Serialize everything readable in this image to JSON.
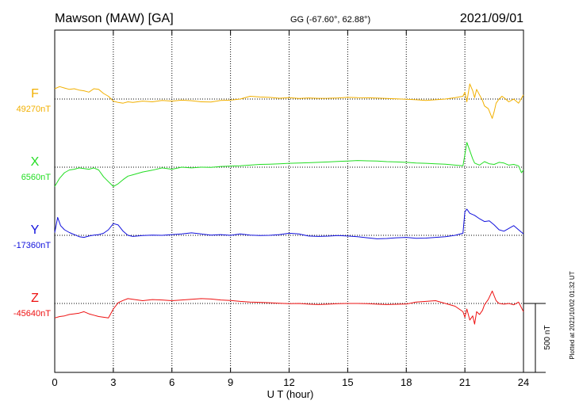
{
  "header": {
    "station": "Mawson (MAW)  [GA]",
    "coords": "GG (-67.60°,  62.88°)",
    "date": "2021/09/01"
  },
  "plotted_note": "Plotted at 2021/10/02 01:32 UT",
  "scale_bar_label": "500 nT",
  "chart_data": {
    "type": "line",
    "title": "Mawson (MAW)  [GA]",
    "xlabel": "U T (hour)",
    "ylabel": "",
    "xlim": [
      0,
      24
    ],
    "x_ticks": [
      0,
      3,
      6,
      9,
      12,
      15,
      18,
      21,
      24
    ],
    "x_tick_labels": [
      "0",
      "3",
      "6",
      "9",
      "12",
      "15",
      "18",
      "21",
      "24"
    ],
    "grid": true,
    "scale_nT": 500,
    "series": [
      {
        "name": "F",
        "baseline_label": "49270nT",
        "color": "#f2b000",
        "unit": "nT",
        "baseline_value": 49270,
        "x": [
          0,
          0.25,
          0.5,
          0.75,
          1.0,
          1.25,
          1.5,
          1.75,
          2.0,
          2.25,
          2.5,
          2.75,
          3.0,
          3.25,
          3.5,
          3.75,
          4.0,
          4.5,
          5.0,
          5.5,
          6.0,
          6.5,
          7.0,
          7.5,
          8.0,
          8.5,
          9.0,
          9.5,
          10.0,
          10.5,
          11.0,
          11.5,
          12.0,
          12.5,
          13.0,
          13.5,
          14.0,
          14.5,
          15.0,
          15.5,
          16.0,
          16.5,
          17.0,
          17.5,
          18.0,
          18.5,
          19.0,
          19.5,
          20.0,
          20.5,
          20.9,
          21.0,
          21.1,
          21.25,
          21.4,
          21.5,
          21.6,
          21.75,
          21.9,
          22.0,
          22.2,
          22.4,
          22.5,
          22.6,
          22.75,
          22.9,
          23.0,
          23.25,
          23.5,
          23.75,
          24.0
        ],
        "values": [
          49345,
          49360,
          49350,
          49340,
          49345,
          49335,
          49330,
          49320,
          49345,
          49340,
          49310,
          49290,
          49255,
          49245,
          49240,
          49250,
          49245,
          49255,
          49250,
          49260,
          49255,
          49262,
          49258,
          49250,
          49248,
          49260,
          49262,
          49270,
          49290,
          49285,
          49282,
          49276,
          49280,
          49274,
          49278,
          49275,
          49276,
          49278,
          49282,
          49280,
          49279,
          49277,
          49274,
          49272,
          49268,
          49265,
          49260,
          49265,
          49270,
          49280,
          49290,
          49320,
          49250,
          49380,
          49330,
          49280,
          49340,
          49300,
          49260,
          49220,
          49200,
          49130,
          49180,
          49240,
          49270,
          49290,
          49280,
          49250,
          49270,
          49240,
          49300
        ]
      },
      {
        "name": "X",
        "baseline_label": "6560nT",
        "color": "#22dd22",
        "unit": "nT",
        "baseline_value": 6560,
        "x": [
          0,
          0.25,
          0.5,
          0.75,
          1.0,
          1.25,
          1.5,
          1.75,
          2.0,
          2.25,
          2.5,
          2.75,
          3.0,
          3.25,
          3.5,
          3.75,
          4.0,
          4.5,
          5.0,
          5.5,
          6.0,
          6.5,
          7.0,
          7.5,
          8.0,
          8.5,
          9.0,
          9.5,
          10.0,
          10.5,
          11.0,
          11.5,
          12.0,
          12.5,
          13.0,
          13.5,
          14.0,
          14.5,
          15.0,
          15.5,
          16.0,
          16.5,
          17.0,
          17.5,
          18.0,
          18.5,
          19.0,
          19.5,
          20.0,
          20.5,
          20.9,
          21.0,
          21.1,
          21.25,
          21.4,
          21.5,
          21.75,
          22.0,
          22.25,
          22.5,
          22.75,
          23.0,
          23.25,
          23.5,
          23.75,
          23.9,
          24.0
        ],
        "values": [
          6420,
          6480,
          6520,
          6540,
          6545,
          6555,
          6550,
          6545,
          6555,
          6540,
          6490,
          6455,
          6420,
          6440,
          6470,
          6495,
          6505,
          6525,
          6538,
          6555,
          6545,
          6560,
          6555,
          6560,
          6558,
          6565,
          6568,
          6570,
          6575,
          6580,
          6582,
          6585,
          6588,
          6590,
          6592,
          6595,
          6598,
          6602,
          6605,
          6608,
          6606,
          6605,
          6600,
          6598,
          6595,
          6590,
          6588,
          6585,
          6582,
          6575,
          6570,
          6650,
          6740,
          6680,
          6620,
          6590,
          6575,
          6600,
          6585,
          6580,
          6595,
          6590,
          6575,
          6580,
          6570,
          6520,
          6540
        ]
      },
      {
        "name": "Y",
        "baseline_label": "-17360nT",
        "color": "#1111dd",
        "unit": "nT",
        "baseline_value": -17360,
        "x": [
          0,
          0.15,
          0.3,
          0.5,
          0.75,
          1.0,
          1.25,
          1.5,
          1.75,
          2.0,
          2.25,
          2.5,
          2.75,
          3.0,
          3.25,
          3.5,
          3.75,
          4.0,
          4.5,
          5.0,
          5.5,
          6.0,
          6.5,
          7.0,
          7.5,
          8.0,
          8.5,
          9.0,
          9.5,
          10.0,
          10.5,
          11.0,
          11.5,
          12.0,
          12.5,
          13.0,
          13.5,
          14.0,
          14.5,
          15.0,
          15.5,
          16.0,
          16.5,
          17.0,
          17.5,
          18.0,
          18.5,
          19.0,
          19.5,
          20.0,
          20.5,
          20.9,
          21.0,
          21.1,
          21.25,
          21.5,
          21.75,
          22.0,
          22.25,
          22.5,
          22.75,
          23.0,
          23.25,
          23.5,
          23.75,
          24.0
        ],
        "values": [
          -17340,
          -17230,
          -17290,
          -17320,
          -17340,
          -17355,
          -17370,
          -17375,
          -17365,
          -17358,
          -17355,
          -17345,
          -17320,
          -17275,
          -17285,
          -17330,
          -17360,
          -17368,
          -17362,
          -17358,
          -17360,
          -17355,
          -17350,
          -17342,
          -17350,
          -17358,
          -17355,
          -17360,
          -17350,
          -17358,
          -17362,
          -17360,
          -17355,
          -17345,
          -17350,
          -17365,
          -17368,
          -17366,
          -17362,
          -17365,
          -17370,
          -17378,
          -17385,
          -17383,
          -17378,
          -17375,
          -17382,
          -17380,
          -17375,
          -17370,
          -17360,
          -17345,
          -17190,
          -17170,
          -17200,
          -17215,
          -17240,
          -17260,
          -17255,
          -17285,
          -17320,
          -17330,
          -17310,
          -17290,
          -17320,
          -17350
        ]
      },
      {
        "name": "Z",
        "baseline_label": "-45640nT",
        "color": "#ee1111",
        "unit": "nT",
        "baseline_value": -45640,
        "x": [
          0,
          0.25,
          0.5,
          0.75,
          1.0,
          1.25,
          1.5,
          1.75,
          2.0,
          2.25,
          2.5,
          2.75,
          3.0,
          3.25,
          3.5,
          3.75,
          4.0,
          4.5,
          5.0,
          5.5,
          6.0,
          6.5,
          7.0,
          7.5,
          8.0,
          8.5,
          9.0,
          9.5,
          10.0,
          10.5,
          11.0,
          11.5,
          12.0,
          12.5,
          13.0,
          13.5,
          14.0,
          14.5,
          15.0,
          15.5,
          16.0,
          16.5,
          17.0,
          17.5,
          18.0,
          18.5,
          19.0,
          19.5,
          20.0,
          20.5,
          20.9,
          21.0,
          21.1,
          21.25,
          21.4,
          21.5,
          21.6,
          21.75,
          21.9,
          22.0,
          22.2,
          22.4,
          22.6,
          22.75,
          23.0,
          23.25,
          23.5,
          23.75,
          24.0
        ],
        "values": [
          -45745,
          -45735,
          -45730,
          -45720,
          -45715,
          -45710,
          -45700,
          -45715,
          -45725,
          -45735,
          -45740,
          -45745,
          -45680,
          -45635,
          -45618,
          -45605,
          -45610,
          -45620,
          -45612,
          -45615,
          -45620,
          -45615,
          -45610,
          -45605,
          -45608,
          -45615,
          -45618,
          -45625,
          -45630,
          -45632,
          -45635,
          -45638,
          -45642,
          -45640,
          -45645,
          -45648,
          -45645,
          -45642,
          -45640,
          -45640,
          -45642,
          -45645,
          -45648,
          -45646,
          -45644,
          -45630,
          -45625,
          -45620,
          -45640,
          -45660,
          -45700,
          -45740,
          -45680,
          -45760,
          -45730,
          -45790,
          -45700,
          -45720,
          -45690,
          -45650,
          -45610,
          -45550,
          -45620,
          -45640,
          -45645,
          -45640,
          -45650,
          -45630,
          -45700
        ]
      }
    ]
  }
}
